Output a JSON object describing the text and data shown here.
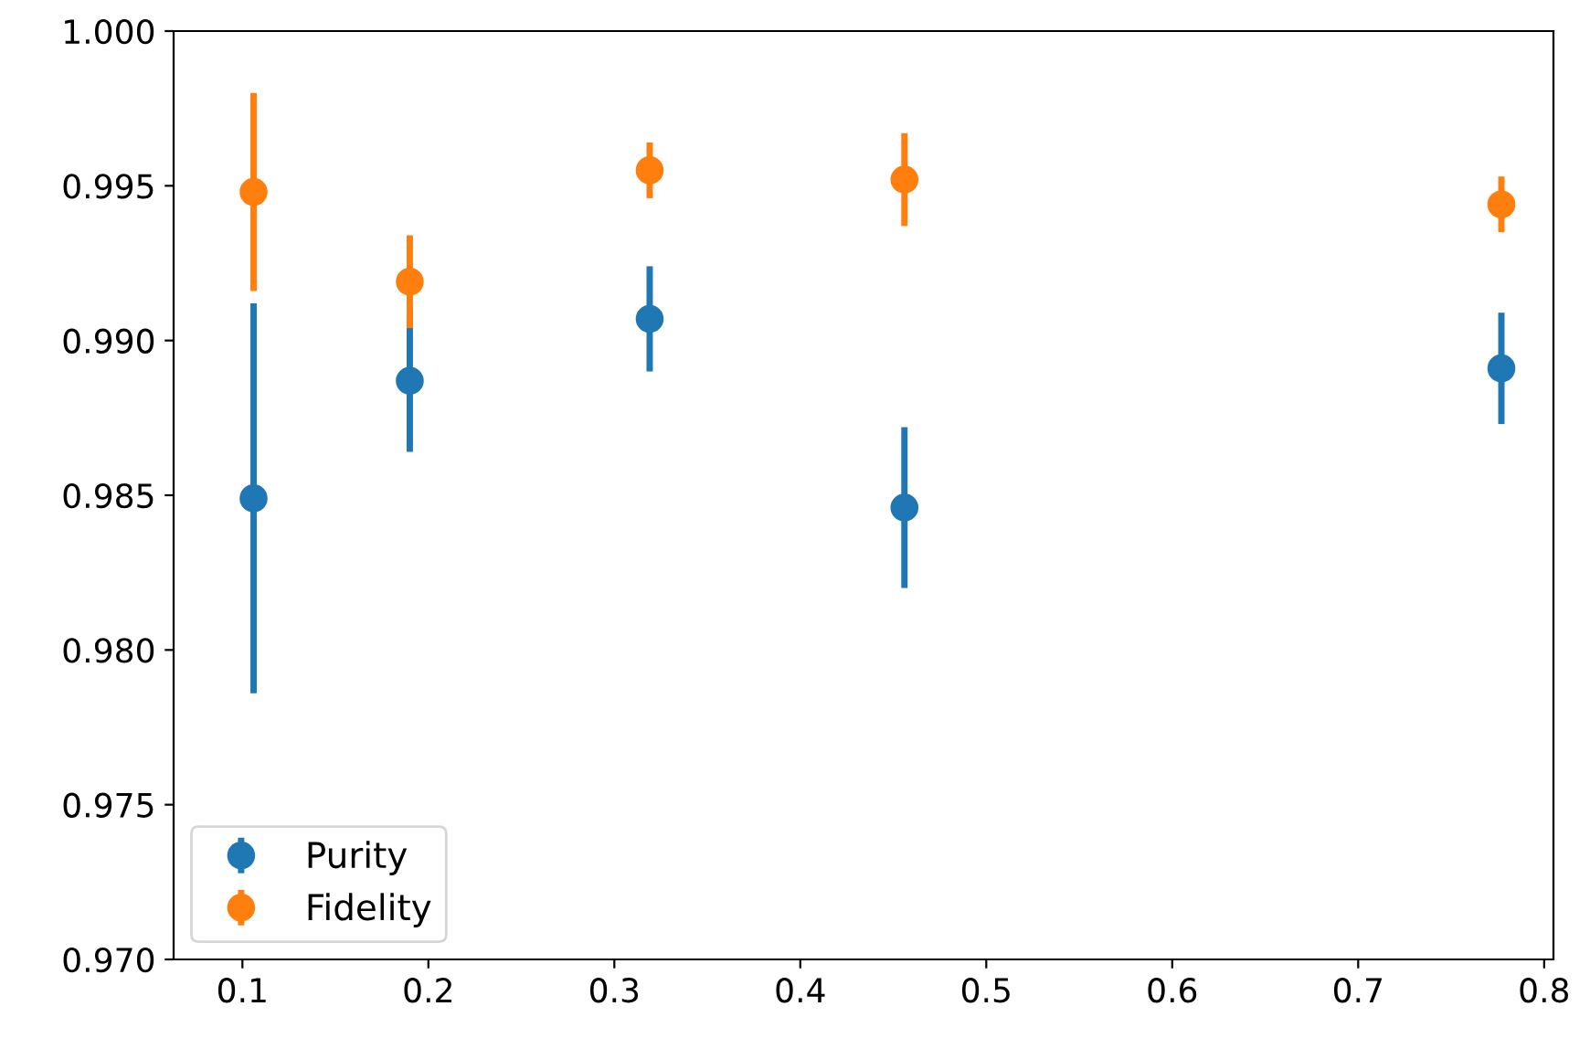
{
  "chart_data": {
    "type": "scatter",
    "x": [
      0.106,
      0.19,
      0.319,
      0.456,
      0.777
    ],
    "series": [
      {
        "name": "Purity",
        "color": "#1f77b4",
        "values": [
          0.9849,
          0.9887,
          0.9907,
          0.9846,
          0.9891
        ],
        "errors": [
          0.0063,
          0.0023,
          0.0017,
          0.0026,
          0.0018
        ]
      },
      {
        "name": "Fidelity",
        "color": "#ff7f0e",
        "values": [
          0.9948,
          0.9919,
          0.9955,
          0.9952,
          0.9944
        ],
        "errors": [
          0.0032,
          0.0015,
          0.0009,
          0.0015,
          0.0009
        ]
      }
    ],
    "xlim": [
      0.063,
      0.805
    ],
    "xticks": [
      {
        "value": 0.1,
        "label": "0.1"
      },
      {
        "value": 0.2,
        "label": "0.2"
      },
      {
        "value": 0.3,
        "label": "0.3"
      },
      {
        "value": 0.4,
        "label": "0.4"
      },
      {
        "value": 0.5,
        "label": "0.5"
      },
      {
        "value": 0.6,
        "label": "0.6"
      },
      {
        "value": 0.7,
        "label": "0.7"
      },
      {
        "value": 0.8,
        "label": "0.8"
      }
    ],
    "ylim": [
      0.97,
      1.0
    ],
    "yticks": [
      {
        "value": 0.97,
        "label": "0.970"
      },
      {
        "value": 0.975,
        "label": "0.975"
      },
      {
        "value": 0.98,
        "label": "0.980"
      },
      {
        "value": 0.985,
        "label": "0.985"
      },
      {
        "value": 0.99,
        "label": "0.990"
      },
      {
        "value": 0.995,
        "label": "0.995"
      },
      {
        "value": 1.0,
        "label": "1.000"
      }
    ],
    "marker": "circle",
    "legend": "bottom left",
    "grid": false
  }
}
